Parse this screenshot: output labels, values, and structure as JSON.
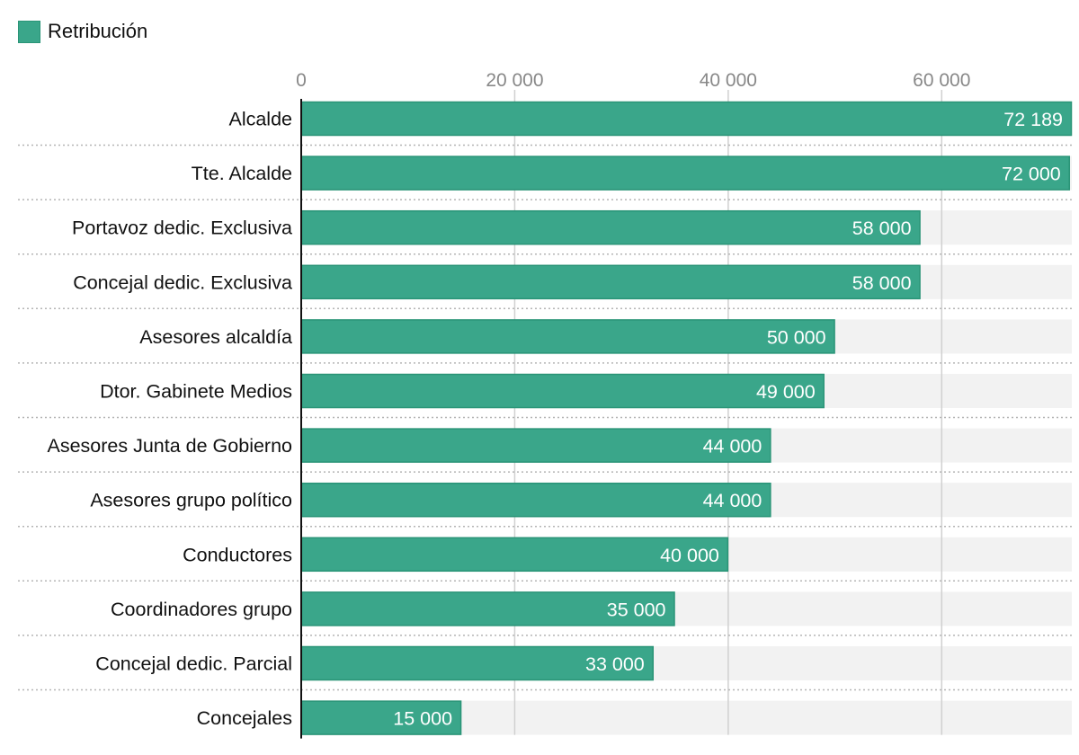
{
  "chart_data": {
    "type": "bar",
    "orientation": "horizontal",
    "title": "",
    "xlabel": "",
    "ylabel": "",
    "xlim": [
      0,
      72189
    ],
    "x_ticks": [
      0,
      20000,
      40000,
      60000
    ],
    "x_tick_labels": [
      "0",
      "20 000",
      "40 000",
      "60 000"
    ],
    "grid": true,
    "legend_position": "top-left",
    "colors": {
      "bar": "#3aa68a",
      "bar_border": "#2a9477",
      "track": "#f2f2f2",
      "grid": "#d0d0d0",
      "tick_label": "#888888"
    },
    "categories": [
      "Alcalde",
      "Tte. Alcalde",
      "Portavoz dedic. Exclusiva",
      "Concejal dedic. Exclusiva",
      "Asesores alcaldía",
      "Dtor. Gabinete Medios",
      "Asesores Junta de Gobierno",
      "Asesores grupo político",
      "Conductores",
      "Coordinadores grupo",
      "Concejal dedic. Parcial",
      "Concejales"
    ],
    "series": [
      {
        "name": "Retribución",
        "values": [
          72189,
          72000,
          58000,
          58000,
          50000,
          49000,
          44000,
          44000,
          40000,
          35000,
          33000,
          15000
        ],
        "labels": [
          "72 189",
          "72 000",
          "58 000",
          "58 000",
          "50 000",
          "49 000",
          "44 000",
          "44 000",
          "40 000",
          "35 000",
          "33 000",
          "15 000"
        ]
      }
    ]
  }
}
